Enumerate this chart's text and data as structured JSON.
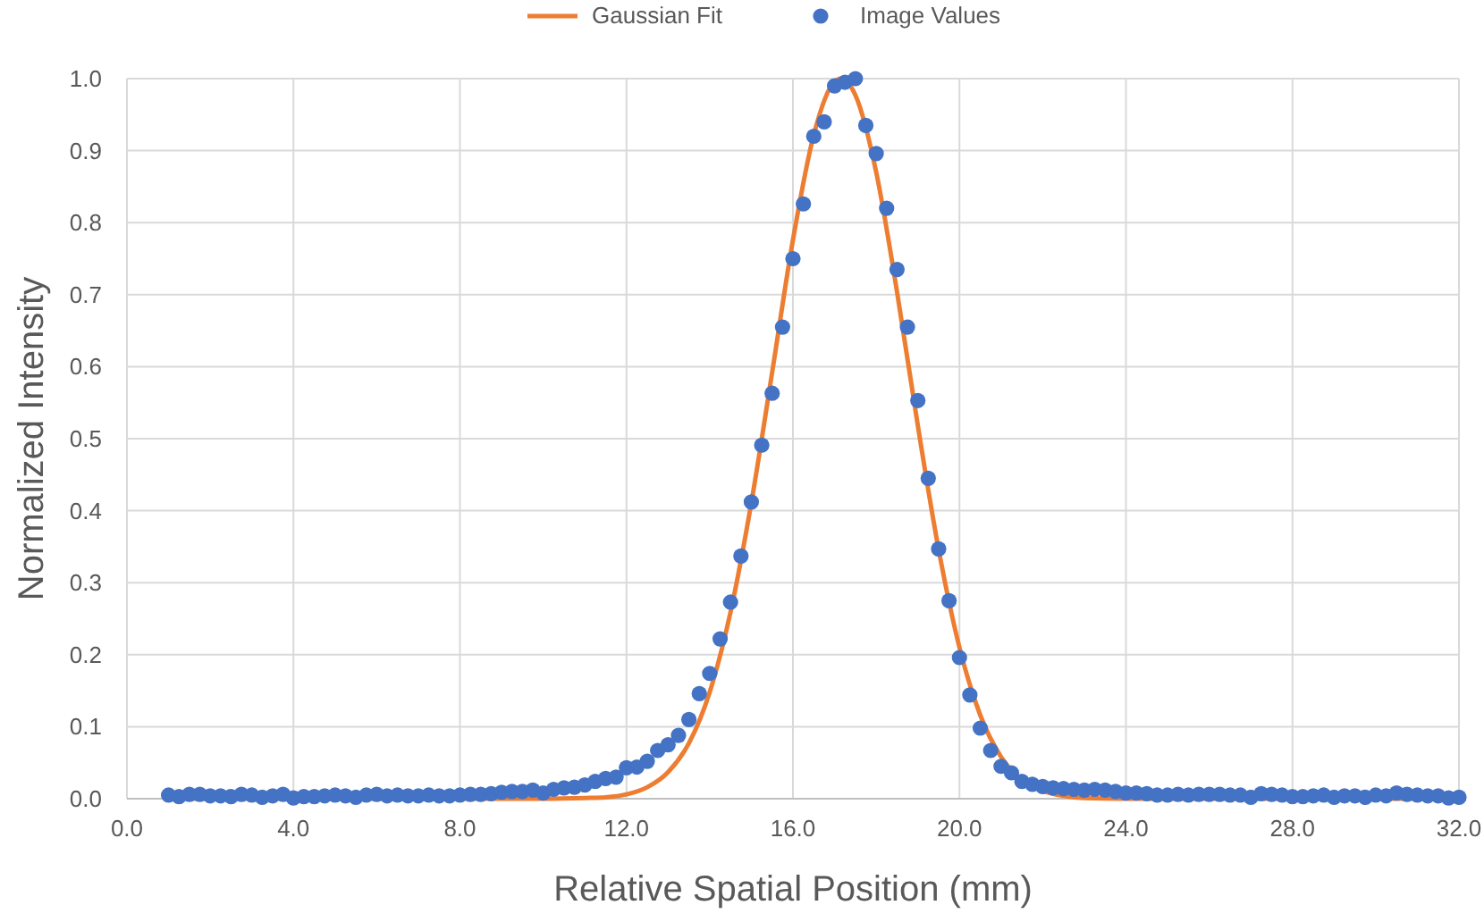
{
  "chart_data": {
    "type": "scatter",
    "xlabel": "Relative Spatial Position (mm)",
    "ylabel": "Normalized Intensity",
    "xlim": [
      0,
      32
    ],
    "ylim": [
      0,
      1
    ],
    "xticks": [
      {
        "value": 0,
        "label": "0.0"
      },
      {
        "value": 4,
        "label": "4.0"
      },
      {
        "value": 8,
        "label": "8.0"
      },
      {
        "value": 12,
        "label": "12.0"
      },
      {
        "value": 16,
        "label": "16.0"
      },
      {
        "value": 20,
        "label": "20.0"
      },
      {
        "value": 24,
        "label": "24.0"
      },
      {
        "value": 28,
        "label": "28.0"
      },
      {
        "value": 32,
        "label": "32.0"
      }
    ],
    "yticks": [
      {
        "value": 0,
        "label": "0.0"
      },
      0.1,
      0.2,
      0.3,
      0.4,
      0.5,
      0.6,
      0.7,
      0.8,
      0.9,
      {
        "value": 1,
        "label": "1.0"
      }
    ],
    "grid": true,
    "legend": "top",
    "series": [
      {
        "name": "Gaussian Fit",
        "type": "line",
        "color": "#ed7d31",
        "marker": "none",
        "line_style": "solid",
        "x": [
          1,
          10,
          11,
          11.5,
          12,
          12.5,
          13,
          13.5,
          14,
          14.5,
          15,
          15.5,
          16,
          16.5,
          17,
          17.15,
          17.5,
          18,
          18.5,
          19,
          19.5,
          20,
          20.5,
          21,
          21.5,
          22,
          22.5,
          23,
          24,
          32
        ],
        "values": [
          0,
          0,
          0.001,
          0.002,
          0.006,
          0.016,
          0.037,
          0.077,
          0.148,
          0.259,
          0.411,
          0.592,
          0.776,
          0.922,
          0.996,
          1,
          0.977,
          0.87,
          0.704,
          0.518,
          0.346,
          0.21,
          0.116,
          0.058,
          0.026,
          0.011,
          0.004,
          0.001,
          0,
          0
        ]
      },
      {
        "name": "Image Values",
        "color": "#4472c4",
        "marker": "circle",
        "x": [
          1,
          1.25,
          1.5,
          1.75,
          2,
          2.25,
          2.5,
          2.75,
          3,
          3.25,
          3.5,
          3.75,
          4,
          4.25,
          4.5,
          4.75,
          5,
          5.25,
          5.5,
          5.75,
          6,
          6.25,
          6.5,
          6.75,
          7,
          7.25,
          7.5,
          7.75,
          8,
          8.25,
          8.5,
          8.75,
          9,
          9.25,
          9.5,
          9.75,
          10,
          10.25,
          10.5,
          10.75,
          11,
          11.25,
          11.5,
          11.75,
          12,
          12.25,
          12.5,
          12.75,
          13,
          13.25,
          13.5,
          13.75,
          14,
          14.25,
          14.5,
          14.75,
          15,
          15.25,
          15.5,
          15.75,
          16,
          16.25,
          16.5,
          16.75,
          17,
          17.25,
          17.5,
          17.75,
          18,
          18.25,
          18.5,
          18.75,
          19,
          19.25,
          19.5,
          19.75,
          20,
          20.25,
          20.5,
          20.75,
          21,
          21.25,
          21.5,
          21.75,
          22,
          22.25,
          22.5,
          22.75,
          23,
          23.25,
          23.5,
          23.75,
          24,
          24.25,
          24.5,
          24.75,
          25,
          25.25,
          25.5,
          25.75,
          26,
          26.25,
          26.5,
          26.75,
          27,
          27.25,
          27.5,
          27.75,
          28,
          28.25,
          28.5,
          28.75,
          29,
          29.25,
          29.5,
          29.75,
          30,
          30.25,
          30.5,
          30.75,
          31,
          31.25,
          31.5,
          31.75,
          32
        ],
        "values": [
          0.005,
          0.003,
          0.006,
          0.006,
          0.004,
          0.004,
          0.003,
          0.006,
          0.005,
          0.002,
          0.004,
          0.006,
          0.001,
          0.003,
          0.003,
          0.004,
          0.005,
          0.004,
          0.002,
          0.005,
          0.006,
          0.004,
          0.005,
          0.004,
          0.004,
          0.005,
          0.004,
          0.004,
          0.005,
          0.006,
          0.006,
          0.007,
          0.009,
          0.01,
          0.01,
          0.012,
          0.008,
          0.013,
          0.015,
          0.016,
          0.019,
          0.024,
          0.028,
          0.03,
          0.043,
          0.044,
          0.052,
          0.067,
          0.075,
          0.088,
          0.11,
          0.146,
          0.174,
          0.222,
          0.273,
          0.337,
          0.412,
          0.491,
          0.563,
          0.655,
          0.75,
          0.826,
          0.92,
          0.94,
          0.99,
          0.995,
          1,
          0.935,
          0.896,
          0.82,
          0.735,
          0.655,
          0.553,
          0.445,
          0.347,
          0.275,
          0.196,
          0.144,
          0.098,
          0.067,
          0.045,
          0.036,
          0.024,
          0.02,
          0.017,
          0.015,
          0.014,
          0.013,
          0.012,
          0.013,
          0.012,
          0.01,
          0.008,
          0.008,
          0.007,
          0.005,
          0.005,
          0.006,
          0.005,
          0.006,
          0.006,
          0.006,
          0.005,
          0.005,
          0.002,
          0.007,
          0.006,
          0.005,
          0.003,
          0.003,
          0.004,
          0.005,
          0.002,
          0.004,
          0.004,
          0.002,
          0.005,
          0.004,
          0.008,
          0.006,
          0.005,
          0.004,
          0.004,
          0.001,
          0.002
        ]
      }
    ]
  }
}
